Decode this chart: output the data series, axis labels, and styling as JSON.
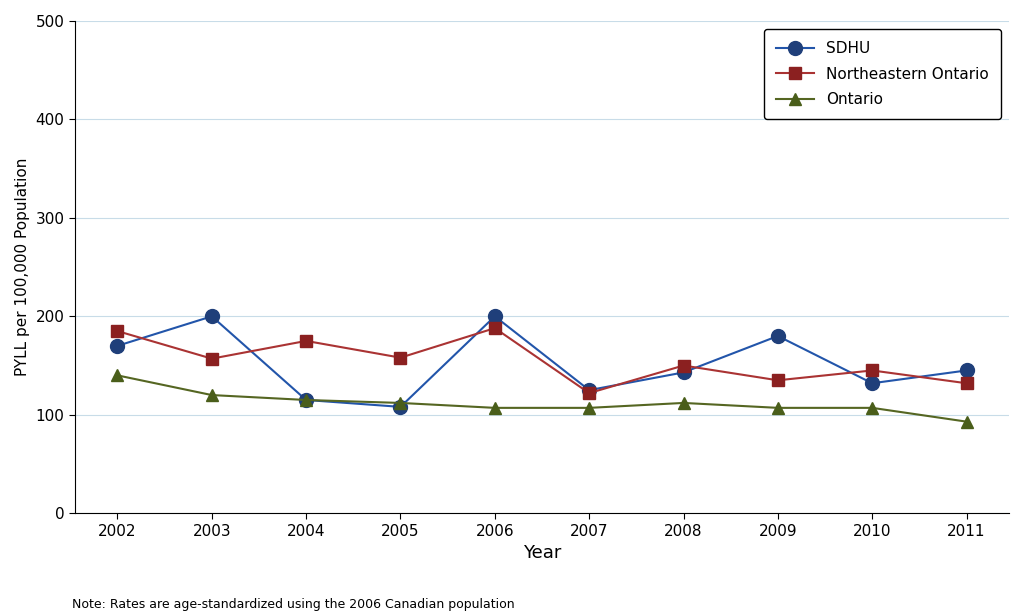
{
  "years": [
    2002,
    2003,
    2004,
    2005,
    2006,
    2007,
    2008,
    2009,
    2010,
    2011
  ],
  "sdhu": [
    170,
    200,
    115,
    108,
    200,
    125,
    143,
    180,
    132,
    145
  ],
  "northeastern_ontario": [
    185,
    157,
    175,
    158,
    188,
    122,
    150,
    135,
    145,
    132
  ],
  "ontario": [
    140,
    120,
    115,
    112,
    107,
    107,
    112,
    107,
    107,
    93
  ],
  "sdhu_color": "#1f3f7a",
  "ne_ontario_color": "#8b2020",
  "ontario_color": "#4a5e1a",
  "line_color_sdhu": "#2255aa",
  "line_color_ne": "#aa3333",
  "line_color_on": "#556622",
  "ylabel": "PYLL per 100,000 Population",
  "xlabel": "Year",
  "ylim_min": 0,
  "ylim_max": 500,
  "yticks": [
    0,
    100,
    200,
    300,
    400,
    500
  ],
  "note": "Note: Rates are age-standardized using the 2006 Canadian population",
  "legend_labels": [
    "SDHU",
    "Northeastern Ontario",
    "Ontario"
  ],
  "background_color": "#ffffff",
  "grid_color": "#c8dce8"
}
